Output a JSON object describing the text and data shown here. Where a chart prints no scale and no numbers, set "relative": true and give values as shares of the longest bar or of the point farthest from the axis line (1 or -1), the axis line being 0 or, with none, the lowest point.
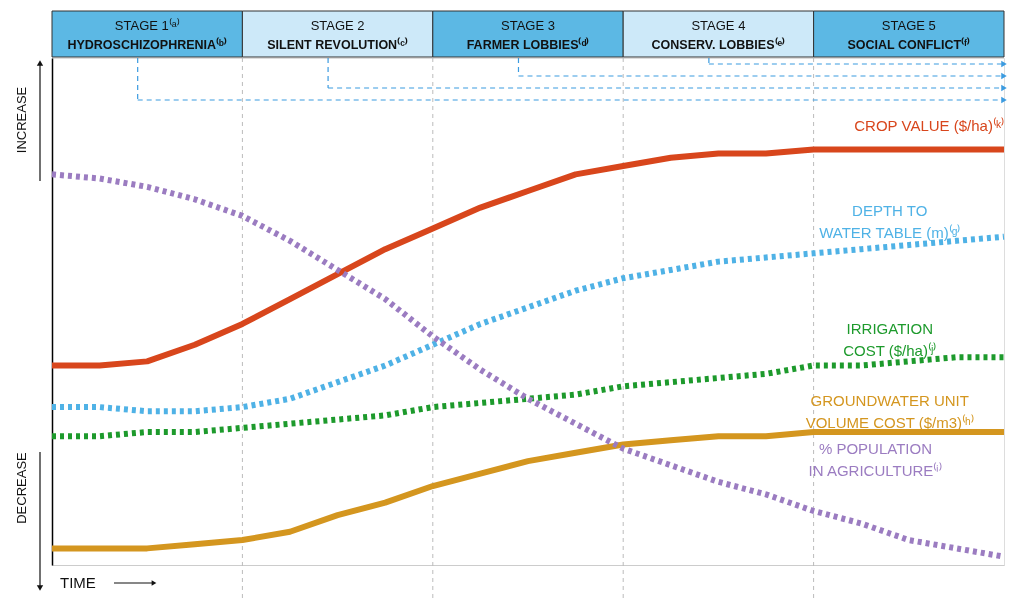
{
  "chart_data": {
    "type": "line",
    "relative": true,
    "xlabel": "TIME",
    "categories": [
      null,
      null,
      null,
      null,
      null,
      null,
      null,
      null,
      null,
      null,
      null,
      null,
      null,
      null,
      null,
      null,
      null,
      null,
      null,
      null,
      null
    ],
    "legend": false,
    "marker": "none",
    "grid": "x",
    "annotations": [
      "STAGE 1⁽ᵃ⁾\nHYDROSCHIZOPHRENIA⁽ᵇ⁾",
      "STAGE 2\nSILENT REVOLUTION⁽ᶜ⁾",
      "STAGE 3\nFARMER LOBBIES⁽ᵈ⁾",
      "STAGE 4\nCONSERV. LOBBIES⁽ᵉ⁾",
      "STAGE 5\nSOCIAL CONFLICT⁽ᶠ⁾",
      "INCREASE",
      "DECREASE"
    ],
    "series": [
      {
        "name": "CROP VALUE ($/ha)⁽ᵏ⁾",
        "color": "#d8461c",
        "line_style": "solid",
        "values": [
          0.48,
          0.48,
          0.49,
          0.53,
          0.58,
          0.64,
          0.7,
          0.76,
          0.81,
          0.86,
          0.9,
          0.94,
          0.96,
          0.98,
          0.99,
          0.99,
          1,
          1,
          1,
          1,
          1
        ]
      },
      {
        "name": "DEPTH TO WATER TABLE (m)⁽ᵍ⁾",
        "color": "#4fb2e6",
        "line_style": "dotted",
        "values": [
          0.38,
          0.38,
          0.37,
          0.37,
          0.38,
          0.4,
          0.44,
          0.48,
          0.53,
          0.58,
          0.62,
          0.66,
          0.69,
          0.71,
          0.73,
          0.74,
          0.75,
          0.76,
          0.77,
          0.78,
          0.79
        ]
      },
      {
        "name": "IRRIGATION COST ($/ha)⁽ʲ⁾",
        "color": "#1d9a2c",
        "line_style": "dotted",
        "values": [
          0.31,
          0.31,
          0.32,
          0.32,
          0.33,
          0.34,
          0.35,
          0.36,
          0.38,
          0.39,
          0.4,
          0.41,
          0.43,
          0.44,
          0.45,
          0.46,
          0.48,
          0.48,
          0.49,
          0.5,
          0.5
        ]
      },
      {
        "name": "GROUNDWATER UNIT VOLUME COST ($/m3)⁽ʰ⁾",
        "color": "#d4961f",
        "line_style": "solid",
        "values": [
          0.04,
          0.04,
          0.04,
          0.05,
          0.06,
          0.08,
          0.12,
          0.15,
          0.19,
          0.22,
          0.25,
          0.27,
          0.29,
          0.3,
          0.31,
          0.31,
          0.32,
          0.32,
          0.32,
          0.32,
          0.32
        ]
      },
      {
        "name": "% POPULATION IN AGRICULTURE⁽ⁱ⁾",
        "color": "#9b7cc1",
        "line_style": "dotted",
        "values": [
          0.94,
          0.93,
          0.91,
          0.88,
          0.84,
          0.78,
          0.71,
          0.64,
          0.55,
          0.47,
          0.4,
          0.34,
          0.28,
          0.24,
          0.2,
          0.17,
          0.13,
          0.1,
          0.06,
          0.04,
          0.02
        ]
      }
    ]
  }
}
